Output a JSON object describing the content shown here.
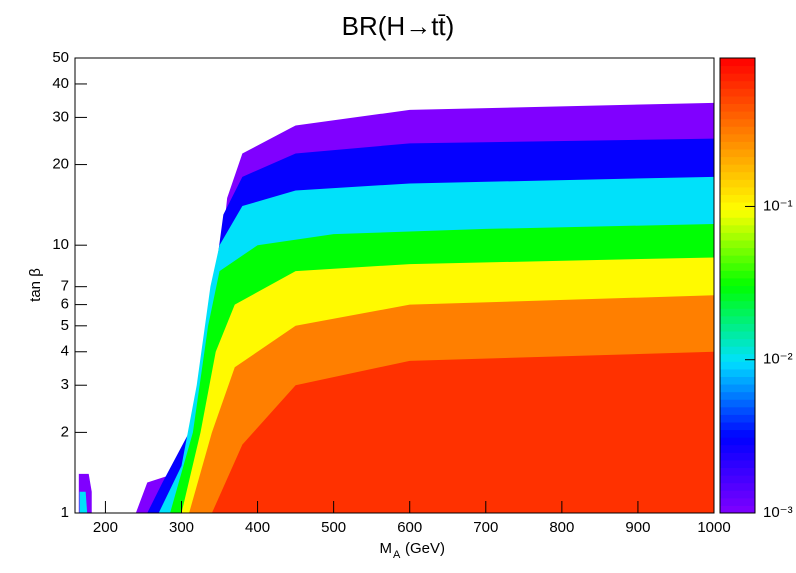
{
  "chart_data": {
    "type": "contour",
    "title": "BR(H→tt̄)",
    "x_label": "M",
    "x_label_sub": "A",
    "x_label_unit": "(GeV)",
    "y_label": "tan β",
    "xlim": [
      160,
      1000
    ],
    "xticks": [
      200,
      300,
      400,
      500,
      600,
      700,
      800,
      900,
      1000
    ],
    "ylim": [
      1,
      50
    ],
    "y_log": true,
    "yticks": [
      1,
      2,
      3,
      4,
      5,
      6,
      7,
      10,
      20,
      30,
      40,
      50
    ],
    "zlim": [
      0.001,
      0.93
    ],
    "z_log": true,
    "zticks": [
      {
        "value": 0.001,
        "label": "10⁻³"
      },
      {
        "value": 0.01,
        "label": "10⁻²"
      },
      {
        "value": 0.1,
        "label": "10⁻¹"
      }
    ],
    "palette": [
      "#8000ff",
      "#0000ff",
      "#00e0ff",
      "#00ff00",
      "#ffff00",
      "#ff8000",
      "#ff0000"
    ],
    "regions": [
      {
        "level": 0.001,
        "x": [
          240,
          255,
          290,
          320,
          340,
          350,
          360,
          380,
          450,
          600,
          1000,
          1000
        ],
        "y": [
          1,
          1.3,
          1.4,
          2,
          3.5,
          8,
          15,
          22,
          28,
          32,
          34,
          1
        ]
      },
      {
        "level": 0.001,
        "x": [
          165,
          165,
          178,
          182,
          182
        ],
        "y": [
          1,
          1.4,
          1.4,
          1.2,
          1
        ]
      },
      {
        "level": 0.003,
        "x": [
          255,
          275,
          310,
          330,
          345,
          355,
          380,
          450,
          600,
          1000,
          1000
        ],
        "y": [
          1,
          1.3,
          2,
          4,
          8,
          13,
          18,
          22,
          24,
          25,
          1
        ]
      },
      {
        "level": 0.01,
        "x": [
          270,
          300,
          320,
          338,
          350,
          380,
          450,
          600,
          1000,
          1000
        ],
        "y": [
          1,
          1.5,
          3,
          7,
          10,
          14,
          16,
          17,
          18,
          1
        ]
      },
      {
        "level": 0.01,
        "x": [
          166,
          166,
          174,
          176
        ],
        "y": [
          1,
          1.2,
          1.2,
          1
        ]
      },
      {
        "level": 0.03,
        "x": [
          285,
          315,
          335,
          350,
          400,
          500,
          700,
          1000,
          1000
        ],
        "y": [
          1,
          2,
          5,
          8,
          10,
          11,
          11.5,
          12,
          1
        ]
      },
      {
        "level": 0.1,
        "x": [
          300,
          325,
          345,
          370,
          450,
          600,
          1000,
          1000
        ],
        "y": [
          1,
          2,
          4,
          6,
          8,
          8.5,
          9,
          1
        ]
      },
      {
        "level": 0.3,
        "x": [
          310,
          340,
          370,
          450,
          600,
          1000,
          1000
        ],
        "y": [
          1,
          2,
          3.5,
          5,
          6,
          6.5,
          1
        ]
      },
      {
        "level": 0.6,
        "x": [
          340,
          380,
          450,
          600,
          1000,
          1000
        ],
        "y": [
          1,
          1.8,
          3,
          3.7,
          4,
          1
        ]
      }
    ]
  }
}
